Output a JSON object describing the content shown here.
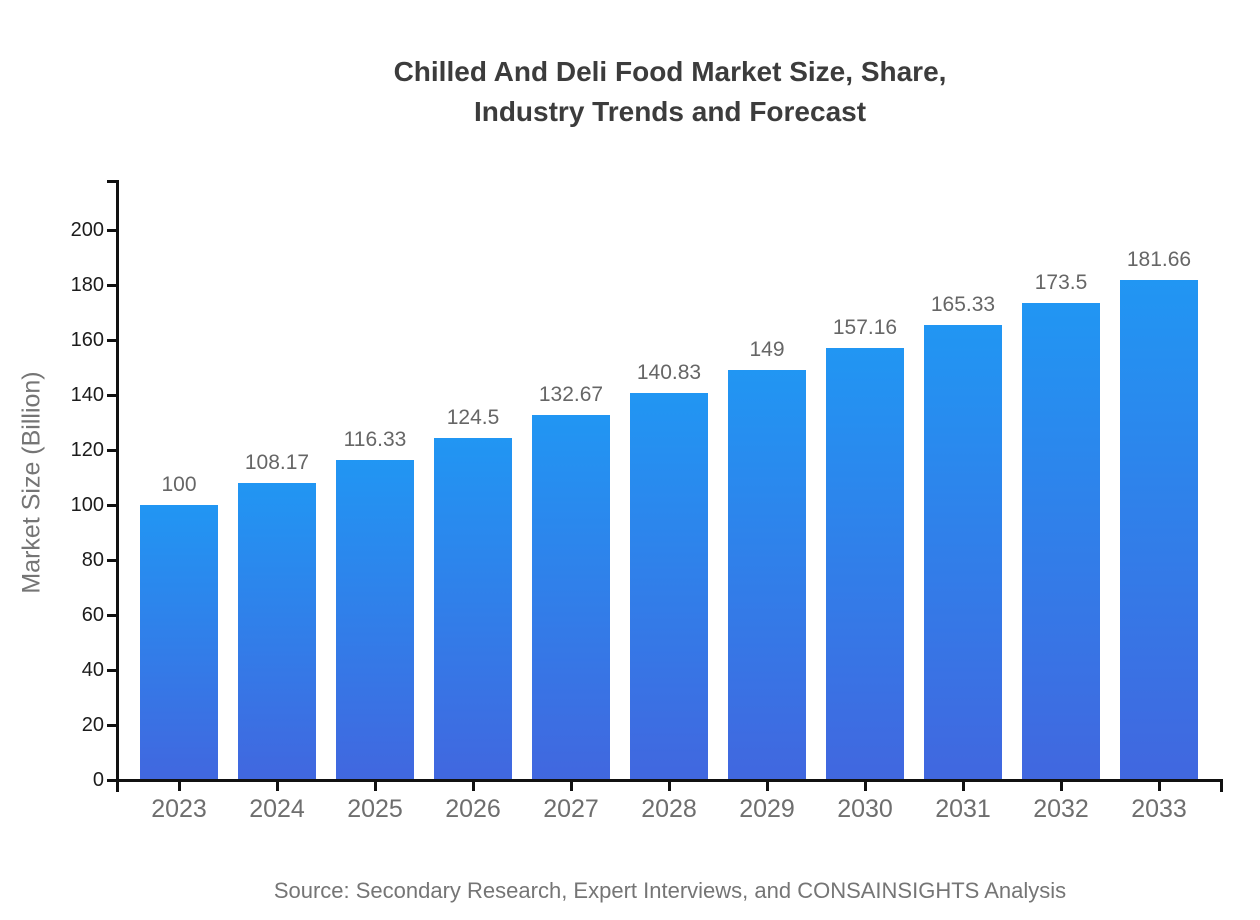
{
  "chart_data": {
    "type": "bar",
    "title_line1": "Chilled And Deli Food Market Size, Share,",
    "title_line2": "Industry Trends and Forecast",
    "ylabel": "Market Size (Billion)",
    "xlabel": "",
    "categories": [
      "2023",
      "2024",
      "2025",
      "2026",
      "2027",
      "2028",
      "2029",
      "2030",
      "2031",
      "2032",
      "2033"
    ],
    "values": [
      100,
      108.17,
      116.33,
      124.5,
      132.67,
      140.83,
      149,
      157.16,
      165.33,
      173.5,
      181.66
    ],
    "value_labels": [
      "100",
      "108.17",
      "116.33",
      "124.5",
      "132.67",
      "140.83",
      "149",
      "157.16",
      "165.33",
      "173.5",
      "181.66"
    ],
    "yticks": [
      0,
      20,
      40,
      60,
      80,
      100,
      120,
      140,
      160,
      180,
      200
    ],
    "ylim": [
      0,
      218
    ],
    "grid": false,
    "legend": false,
    "source": "Source: Secondary Research, Expert Interviews, and CONSAINSIGHTS Analysis",
    "colors": {
      "bar_gradient_top": "#2196F3",
      "bar_gradient_bottom": "#4167DF",
      "axis": "#111111",
      "title_text": "#3c3c3c",
      "y_tick_text": "#1c1c1c",
      "x_tick_text": "#6e6e6e",
      "value_label_text": "#666666",
      "muted_text": "#757575"
    }
  }
}
